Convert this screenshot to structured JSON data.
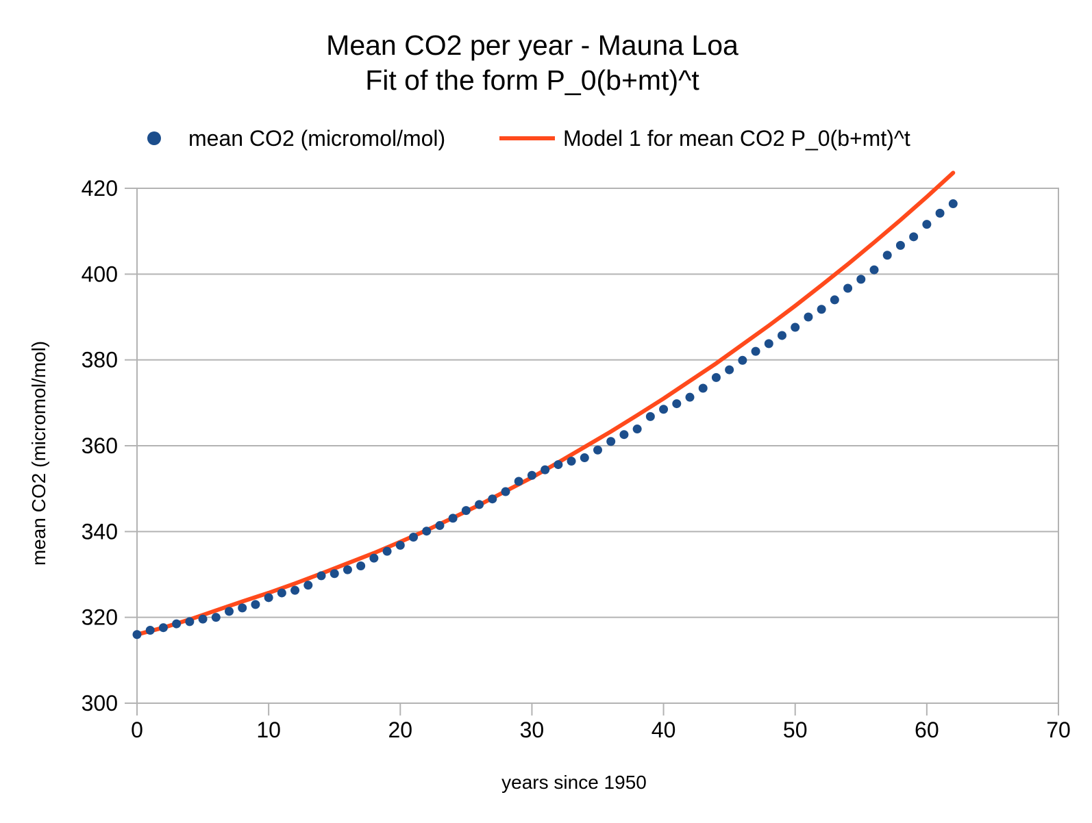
{
  "chart_data": {
    "type": "scatter",
    "title": "Mean CO2 per year - Mauna Loa",
    "subtitle": "Fit of the form P_0(b+mt)^t",
    "xlabel": "years since 1950",
    "ylabel": "mean CO2 (micromol/mol)",
    "xlim": [
      0,
      70
    ],
    "ylim": [
      300,
      420
    ],
    "x_ticks": [
      0,
      10,
      20,
      30,
      40,
      50,
      60,
      70
    ],
    "y_ticks": [
      300,
      320,
      340,
      360,
      380,
      400,
      420
    ],
    "grid": "horizontal",
    "legend_position": "top",
    "series": [
      {
        "name": "mean CO2 (micromol/mol)",
        "type": "scatter",
        "color": "#1c4e8c",
        "x": [
          0,
          1,
          2,
          3,
          4,
          5,
          6,
          7,
          8,
          9,
          10,
          11,
          12,
          13,
          14,
          15,
          16,
          17,
          18,
          19,
          20,
          21,
          22,
          23,
          24,
          25,
          26,
          27,
          28,
          29,
          30,
          31,
          32,
          33,
          34,
          35,
          36,
          37,
          38,
          39,
          40,
          41,
          42,
          43,
          44,
          45,
          46,
          47,
          48,
          49,
          50,
          51,
          52,
          53,
          54,
          55,
          56,
          57,
          58,
          59,
          60,
          61,
          62
        ],
        "y": [
          316.0,
          317.0,
          317.6,
          318.5,
          319.0,
          319.6,
          320.0,
          321.4,
          322.2,
          323.0,
          324.6,
          325.7,
          326.3,
          327.5,
          329.7,
          330.2,
          331.1,
          332.0,
          333.8,
          335.4,
          336.8,
          338.7,
          340.1,
          341.4,
          343.1,
          344.9,
          346.3,
          347.6,
          349.3,
          351.7,
          353.1,
          354.4,
          355.6,
          356.4,
          357.2,
          359.0,
          361.0,
          362.6,
          363.9,
          366.8,
          368.5,
          369.8,
          371.3,
          373.4,
          375.9,
          377.7,
          379.9,
          382.0,
          383.8,
          385.7,
          387.6,
          390.0,
          391.8,
          394.0,
          396.7,
          398.8,
          401.0,
          404.4,
          406.7,
          408.7,
          411.6,
          414.2,
          416.4
        ]
      },
      {
        "name": "Model 1 for mean CO2 P_0(b+mt)^t",
        "type": "line",
        "color": "#ff4a1c",
        "x": [
          0,
          2,
          4,
          6,
          8,
          10,
          12,
          14,
          16,
          18,
          20,
          22,
          24,
          26,
          28,
          30,
          32,
          34,
          36,
          38,
          40,
          42,
          44,
          46,
          48,
          50,
          52,
          54,
          56,
          58,
          60,
          62
        ],
        "y": [
          316.0,
          317.6,
          319.5,
          321.6,
          323.7,
          325.7,
          327.9,
          330.2,
          332.6,
          335.0,
          337.6,
          340.3,
          343.2,
          346.2,
          349.4,
          352.6,
          356.1,
          359.7,
          363.3,
          367.1,
          371.0,
          375.1,
          379.2,
          383.6,
          388.0,
          392.6,
          397.4,
          402.3,
          407.4,
          412.6,
          418.0,
          423.6
        ]
      }
    ]
  }
}
